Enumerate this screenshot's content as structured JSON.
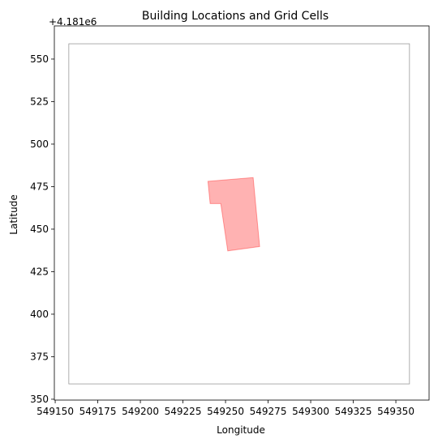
{
  "chart_data": {
    "type": "scatter",
    "title": "Building Locations and Grid Cells",
    "xlabel": "Longitude",
    "ylabel": "Latitude",
    "offset_text": "+4.181e6",
    "xlim": [
      549149.5,
      549369.5
    ],
    "ylim": [
      349.5,
      569.5
    ],
    "x_ticks": [
      549150,
      549175,
      549200,
      549225,
      549250,
      549275,
      549300,
      549325,
      549350
    ],
    "y_ticks": [
      350,
      375,
      400,
      425,
      450,
      475,
      500,
      525,
      550
    ],
    "y_tick_labels": [
      "350",
      "375",
      "400",
      "425",
      "450",
      "475",
      "500",
      "525",
      "550"
    ],
    "grid_cell": {
      "x0": 549158,
      "x1": 549358,
      "y0": 359,
      "y1": 559,
      "color": "#999999"
    },
    "building": {
      "color": "#ff0000",
      "alpha": 0.3,
      "polygon": [
        [
          549239.7,
          478.1
        ],
        [
          549266.2,
          480.3
        ],
        [
          549270.0,
          439.8
        ],
        [
          549251.3,
          437.2
        ],
        [
          549247.2,
          465.0
        ],
        [
          549241.0,
          465.0
        ]
      ]
    },
    "grid": false,
    "legend": "none"
  }
}
